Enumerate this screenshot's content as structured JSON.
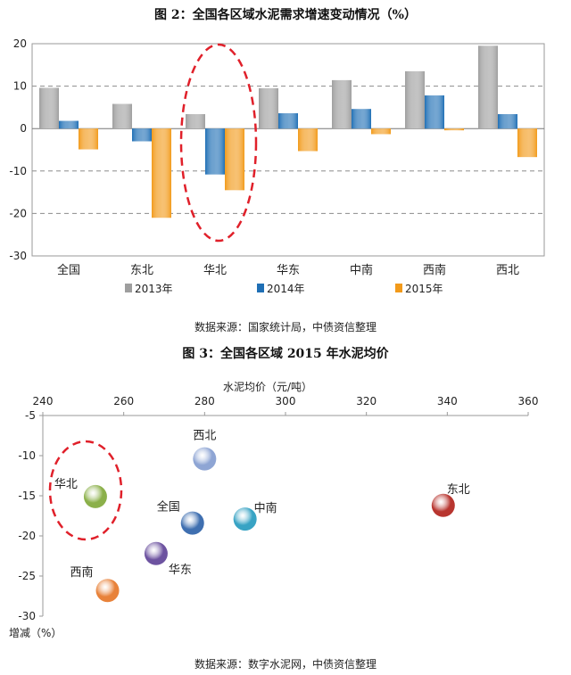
{
  "chart_data": [
    {
      "type": "bar",
      "title": "图 2：全国各区域水泥需求增速变动情况（%）",
      "categories": [
        "全国",
        "东北",
        "华北",
        "华东",
        "中南",
        "西南",
        "西北"
      ],
      "series": [
        {
          "name": "2013年",
          "values": [
            9.6,
            5.8,
            3.4,
            9.5,
            11.4,
            13.5,
            19.5
          ],
          "color": "#9e9e9e"
        },
        {
          "name": "2014年",
          "values": [
            1.8,
            -3.0,
            -10.8,
            3.6,
            4.6,
            7.8,
            3.4
          ],
          "color": "#1f6fb5"
        },
        {
          "name": "2015年",
          "values": [
            -4.9,
            -21.0,
            -14.5,
            -5.3,
            -1.3,
            -0.4,
            -6.7
          ],
          "color": "#f29a1a"
        }
      ],
      "ylim": [
        -30,
        20
      ],
      "yticks": [
        20,
        10,
        0,
        -10,
        -20,
        -30
      ],
      "grid": true,
      "legend": "bottom",
      "source": "数据来源：国家统计局，中债资信整理",
      "annotation": "华北"
    },
    {
      "type": "scatter",
      "title": "图 3：全国各区域 2015 年水泥均价",
      "xlabel": "水泥均价（元/吨）",
      "ylabel": "增减（%）",
      "xlim": [
        240,
        360
      ],
      "ylim": [
        -30,
        -5
      ],
      "xticks": [
        240,
        260,
        280,
        300,
        320,
        340,
        360
      ],
      "yticks": [
        -5,
        -10,
        -15,
        -20,
        -25,
        -30
      ],
      "x_axis_position": "top",
      "points": [
        {
          "label": "西北",
          "x": 280,
          "y": -10.4,
          "color": "#8ea5d4"
        },
        {
          "label": "华北",
          "x": 253,
          "y": -15.1,
          "color": "#8bb04a"
        },
        {
          "label": "东北",
          "x": 339,
          "y": -16.2,
          "color": "#b8352f"
        },
        {
          "label": "中南",
          "x": 290,
          "y": -17.9,
          "color": "#38a3c4"
        },
        {
          "label": "全国",
          "x": 277,
          "y": -18.4,
          "color": "#3f6fb0"
        },
        {
          "label": "华东",
          "x": 268,
          "y": -22.2,
          "color": "#6d53a0"
        },
        {
          "label": "西南",
          "x": 256,
          "y": -26.8,
          "color": "#e8823a"
        }
      ],
      "source": "数据来源：数字水泥网，中债资信整理",
      "annotation": "华北"
    }
  ]
}
